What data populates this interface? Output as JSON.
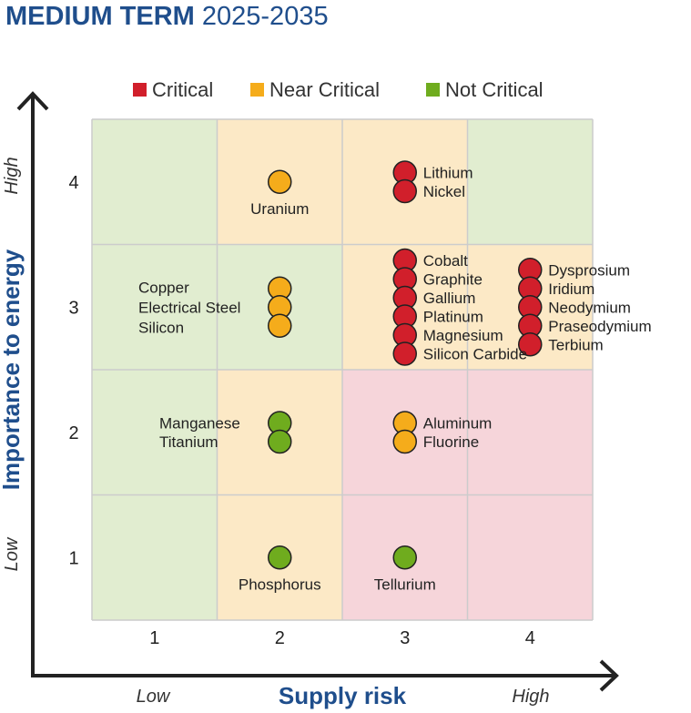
{
  "title": {
    "bold": "MEDIUM TERM",
    "light": "2025-2035"
  },
  "colors": {
    "critical": "#d11f2b",
    "near_critical": "#f5ac1b",
    "not_critical": "#6fac1e",
    "zone_red": "#f6d5da",
    "zone_orange": "#fce9c6",
    "zone_green": "#e1edd0",
    "axis_title": "#1f4e8c"
  },
  "legend": [
    {
      "label": "Critical",
      "color": "#d11f2b"
    },
    {
      "label": "Near Critical",
      "color": "#f5ac1b"
    },
    {
      "label": "Not Critical",
      "color": "#6fac1e"
    }
  ],
  "chart_data": {
    "type": "scatter",
    "xlabel": "Supply risk",
    "ylabel": "Importance to energy",
    "x_ticks": [
      "1",
      "2",
      "3",
      "4"
    ],
    "y_ticks": [
      "1",
      "2",
      "3",
      "4"
    ],
    "x_end_labels": {
      "low": "Low",
      "high": "High"
    },
    "y_end_labels": {
      "low": "Low",
      "high": "High"
    },
    "xlim": [
      0.5,
      4.5
    ],
    "ylim": [
      0.5,
      4.5
    ],
    "grid": true,
    "zones": [
      [
        "green",
        "orange",
        "orange",
        "green"
      ],
      [
        "green",
        "green",
        "orange",
        "orange"
      ],
      [
        "green",
        "orange",
        "red",
        "red"
      ],
      [
        "green",
        "orange",
        "red",
        "red"
      ]
    ],
    "groups": [
      {
        "x": 2,
        "y": 4,
        "status": "near_critical",
        "materials": [
          "Uranium"
        ],
        "label_side": "below"
      },
      {
        "x": 3,
        "y": 4,
        "status": "critical",
        "materials": [
          "Lithium",
          "Nickel"
        ],
        "label_side": "right"
      },
      {
        "x": 2,
        "y": 3,
        "status": "near_critical",
        "materials": [
          "Copper",
          "Electrical Steel",
          "Silicon"
        ],
        "label_side": "left"
      },
      {
        "x": 3,
        "y": 3,
        "status": "critical",
        "materials": [
          "Cobalt",
          "Graphite",
          "Gallium",
          "Platinum",
          "Magnesium",
          "Silicon Carbide"
        ],
        "label_side": "right"
      },
      {
        "x": 4,
        "y": 3,
        "status": "critical",
        "materials": [
          "Dysprosium",
          "Iridium",
          "Neodymium",
          "Praseodymium",
          "Terbium"
        ],
        "label_side": "right"
      },
      {
        "x": 2,
        "y": 2,
        "status": "not_critical",
        "materials": [
          "Manganese",
          "Titanium"
        ],
        "label_side": "left"
      },
      {
        "x": 3,
        "y": 2,
        "status": "near_critical",
        "materials": [
          "Aluminum",
          "Fluorine"
        ],
        "label_side": "right"
      },
      {
        "x": 2,
        "y": 1,
        "status": "not_critical",
        "materials": [
          "Phosphorus"
        ],
        "label_side": "below"
      },
      {
        "x": 3,
        "y": 1,
        "status": "not_critical",
        "materials": [
          "Tellurium"
        ],
        "label_side": "below"
      }
    ]
  }
}
